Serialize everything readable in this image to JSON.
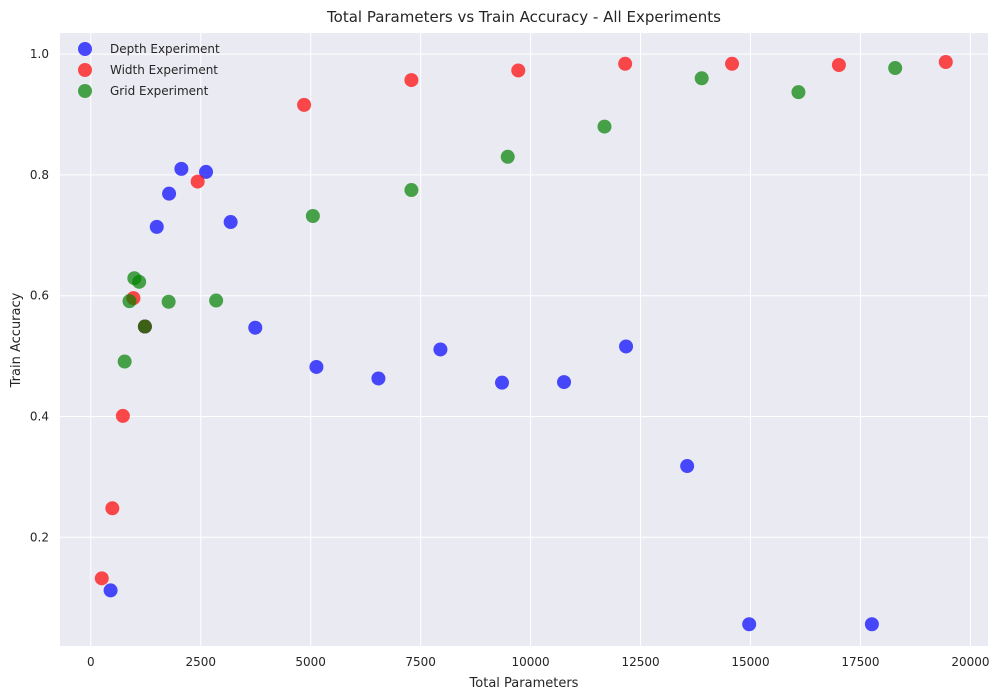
{
  "chart_data": {
    "type": "scatter",
    "title": "Total Parameters vs Train Accuracy - All Experiments",
    "xlabel": "Total Parameters",
    "ylabel": "Train Accuracy",
    "xlim": [
      -700,
      20400
    ],
    "ylim": [
      0.02,
      1.035
    ],
    "xticks": [
      0,
      2500,
      5000,
      7500,
      10000,
      12500,
      15000,
      17500,
      20000
    ],
    "yticks": [
      0.2,
      0.4,
      0.6,
      0.8,
      1.0
    ],
    "xtick_labels": [
      "0",
      "2500",
      "5000",
      "7500",
      "10000",
      "12500",
      "15000",
      "17500",
      "20000"
    ],
    "ytick_labels": [
      "0.2",
      "0.4",
      "0.6",
      "0.8",
      "1.0"
    ],
    "grid": true,
    "legend_position": "top-left",
    "series": [
      {
        "name": "Depth Experiment",
        "color": "#0000ff",
        "points": [
          [
            450,
            0.112
          ],
          [
            1230,
            0.549
          ],
          [
            1500,
            0.714
          ],
          [
            1780,
            0.769
          ],
          [
            2060,
            0.81
          ],
          [
            2620,
            0.805
          ],
          [
            3180,
            0.722
          ],
          [
            3740,
            0.547
          ],
          [
            5130,
            0.482
          ],
          [
            6540,
            0.463
          ],
          [
            7950,
            0.511
          ],
          [
            9350,
            0.456
          ],
          [
            10760,
            0.457
          ],
          [
            12170,
            0.516
          ],
          [
            13560,
            0.318
          ],
          [
            14970,
            0.056
          ],
          [
            17760,
            0.056
          ]
        ]
      },
      {
        "name": "Width Experiment",
        "color": "#ff0000",
        "points": [
          [
            250,
            0.132
          ],
          [
            490,
            0.248
          ],
          [
            730,
            0.401
          ],
          [
            970,
            0.596
          ],
          [
            1230,
            0.549
          ],
          [
            2430,
            0.789
          ],
          [
            4850,
            0.916
          ],
          [
            7290,
            0.957
          ],
          [
            9720,
            0.973
          ],
          [
            12150,
            0.984
          ],
          [
            14580,
            0.984
          ],
          [
            17010,
            0.982
          ],
          [
            19440,
            0.987
          ]
        ]
      },
      {
        "name": "Grid Experiment",
        "color": "#008000",
        "points": [
          [
            770,
            0.491
          ],
          [
            880,
            0.591
          ],
          [
            990,
            0.629
          ],
          [
            1100,
            0.623
          ],
          [
            1230,
            0.549
          ],
          [
            1770,
            0.59
          ],
          [
            2850,
            0.592
          ],
          [
            5050,
            0.732
          ],
          [
            7290,
            0.775
          ],
          [
            9480,
            0.83
          ],
          [
            11680,
            0.88
          ],
          [
            13890,
            0.96
          ],
          [
            16090,
            0.937
          ],
          [
            18290,
            0.977
          ]
        ]
      }
    ]
  }
}
